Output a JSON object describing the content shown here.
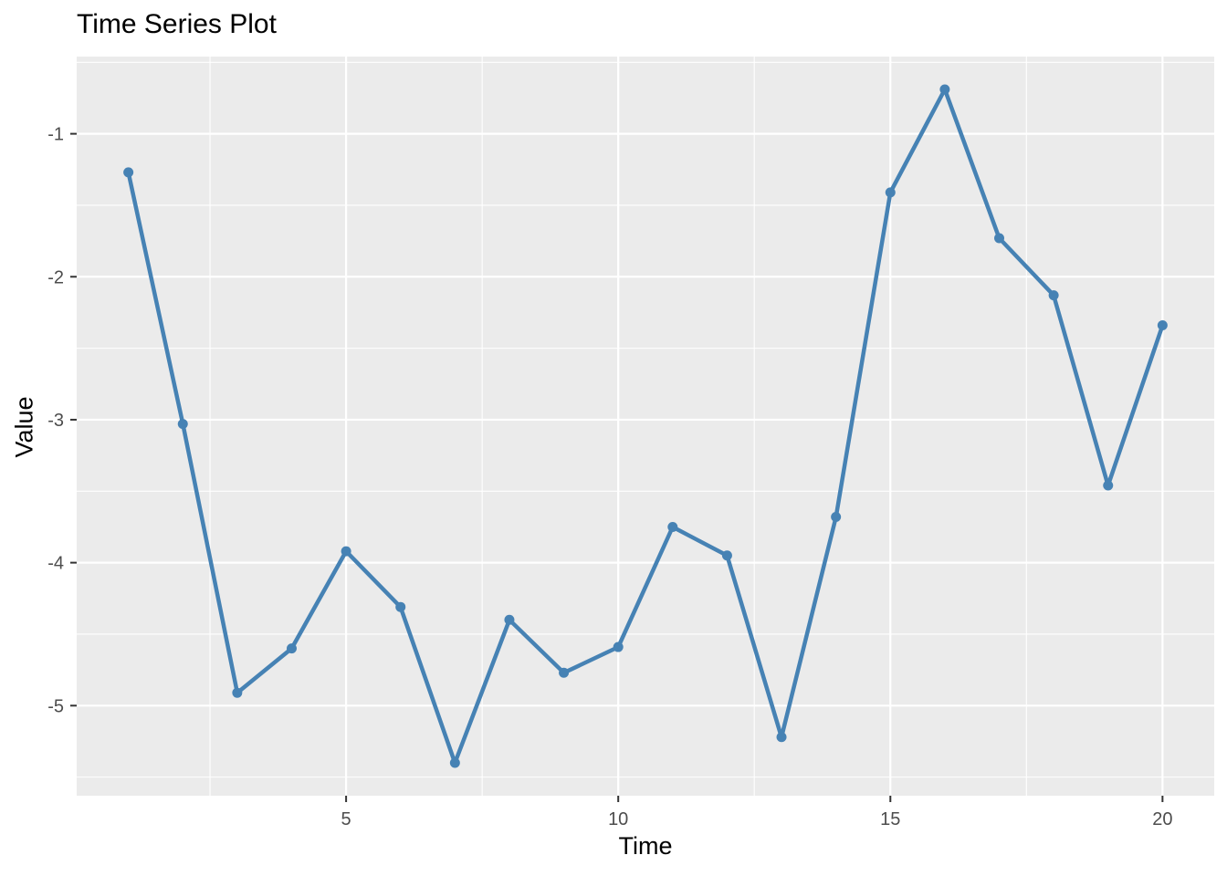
{
  "chart_data": {
    "type": "line",
    "title": "Time Series Plot",
    "xlabel": "Time",
    "ylabel": "Value",
    "xlim": [
      0.05,
      20.95
    ],
    "ylim": [
      -5.63,
      -0.46
    ],
    "x_ticks": [
      5,
      10,
      15,
      20
    ],
    "x_tick_labels": [
      "5",
      "10",
      "15",
      "20"
    ],
    "y_ticks": [
      -5,
      -4,
      -3,
      -2,
      -1
    ],
    "y_tick_labels": [
      "-5",
      "-4",
      "-3",
      "-2",
      "-1"
    ],
    "grid": true,
    "colors": {
      "series": "#4682B4",
      "panel": "#EBEBEB",
      "grid": "#FFFFFF"
    },
    "x": [
      1,
      2,
      3,
      4,
      5,
      6,
      7,
      8,
      9,
      10,
      11,
      12,
      13,
      14,
      15,
      16,
      17,
      18,
      19,
      20
    ],
    "series": [
      {
        "values": [
          -1.27,
          -3.03,
          -4.91,
          -4.6,
          -3.92,
          -4.31,
          -5.4,
          -4.4,
          -4.77,
          -4.59,
          -3.75,
          -3.95,
          -5.22,
          -3.68,
          -1.41,
          -0.69,
          -1.73,
          -2.13,
          -3.46,
          -2.34
        ]
      }
    ]
  }
}
